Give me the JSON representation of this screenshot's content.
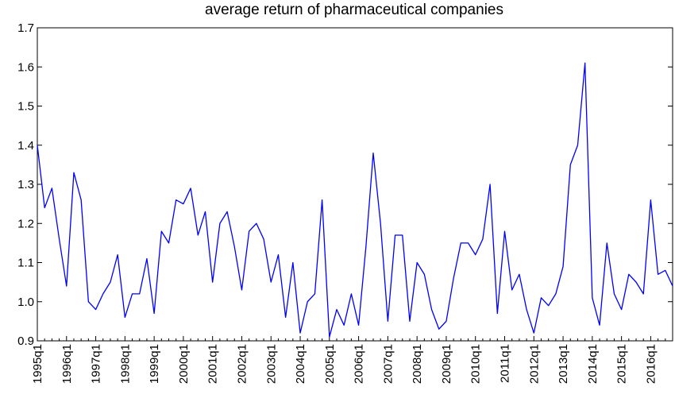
{
  "chart_data": {
    "type": "line",
    "title": "average return of pharmaceutical companies",
    "xlabel": "",
    "ylabel": "",
    "ylim": [
      0.9,
      1.7
    ],
    "y_ticks": [
      "0.9",
      "1.0",
      "1.1",
      "1.2",
      "1.3",
      "1.4",
      "1.5",
      "1.6",
      "1.7"
    ],
    "x_tick_labels": [
      "1995q1",
      "1996q1",
      "1997q1",
      "1998q1",
      "1999q1",
      "2000q1",
      "2001q1",
      "2002q1",
      "2003q1",
      "2004q1",
      "2005q1",
      "2006q1",
      "2007q1",
      "2008q1",
      "2009q1",
      "2010q1",
      "2011q1",
      "2012q1",
      "2013q1",
      "2014q1",
      "2015q1",
      "2016q1"
    ],
    "x_start": "1995q1",
    "grid": false,
    "line_color": "#0000ff",
    "series": [
      {
        "values": [
          1.4,
          1.24,
          1.29,
          1.16,
          1.04,
          1.33,
          1.26,
          1.0,
          0.98,
          1.02,
          1.05,
          1.12,
          0.96,
          1.02,
          1.02,
          1.11,
          0.97,
          1.18,
          1.15,
          1.26,
          1.25,
          1.29,
          1.17,
          1.23,
          1.05,
          1.2,
          1.23,
          1.14,
          1.03,
          1.18,
          1.2,
          1.16,
          1.05,
          1.12,
          0.96,
          1.1,
          0.92,
          1.0,
          1.02,
          1.26,
          0.91,
          0.98,
          0.94,
          1.02,
          0.94,
          1.14,
          1.38,
          1.2,
          0.95,
          1.17,
          1.17,
          0.95,
          1.1,
          1.07,
          0.98,
          0.93,
          0.95,
          1.06,
          1.15,
          1.15,
          1.12,
          1.16,
          1.3,
          0.97,
          1.18,
          1.03,
          1.07,
          0.98,
          0.92,
          1.01,
          0.99,
          1.02,
          1.09,
          1.35,
          1.4,
          1.61,
          1.01,
          0.94,
          1.15,
          1.02,
          0.98,
          1.07,
          1.05,
          1.02,
          1.26,
          1.07,
          1.08,
          1.04
        ]
      }
    ]
  }
}
